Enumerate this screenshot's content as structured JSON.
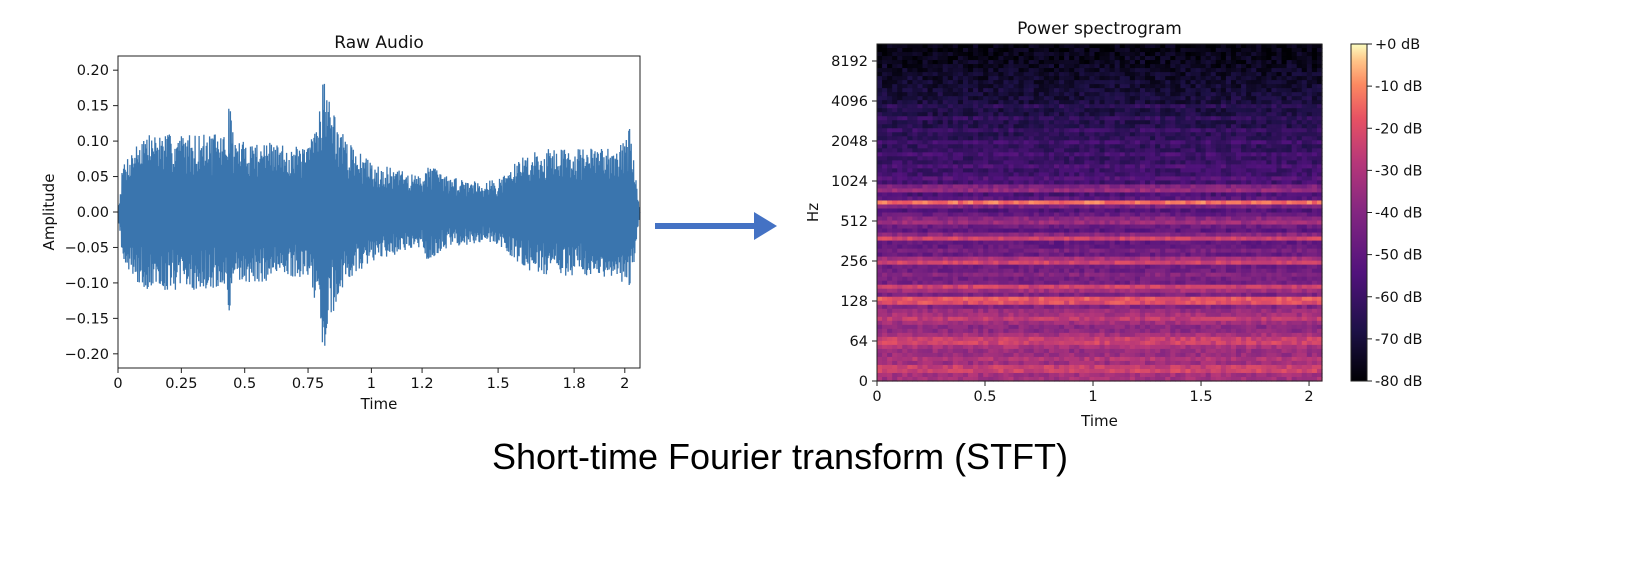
{
  "caption": "Short-time Fourier transform (STFT)",
  "colors": {
    "waveform": "#3a75ae",
    "arrow": "#4472c4"
  },
  "chart_data": [
    {
      "type": "line",
      "title": "Raw Audio",
      "xlabel": "Time",
      "ylabel": "Amplitude",
      "xlim": [
        0,
        2.06
      ],
      "ylim": [
        -0.22,
        0.22
      ],
      "x_ticks": [
        0,
        0.25,
        0.5,
        0.75,
        1,
        1.2,
        1.5,
        1.8,
        2
      ],
      "x_tick_labels": [
        "0",
        "0.25",
        "0.5",
        "0.75",
        "1",
        "1.2",
        "1.5",
        "1.8",
        "2"
      ],
      "y_ticks": [
        0.2,
        0.15,
        0.1,
        0.05,
        0.0,
        -0.05,
        -0.1,
        -0.15,
        -0.2
      ],
      "y_tick_labels": [
        "0.20",
        "0.15",
        "0.10",
        "0.05",
        "0.00",
        "−0.05",
        "−0.10",
        "−0.15",
        "−0.20"
      ],
      "series": [
        {
          "envelope_time": [
            0,
            0.02,
            0.1,
            0.2,
            0.3,
            0.4,
            0.43,
            0.44,
            0.46,
            0.55,
            0.65,
            0.75,
            0.79,
            0.81,
            0.84,
            0.9,
            1.0,
            1.1,
            1.2,
            1.22,
            1.3,
            1.4,
            1.5,
            1.6,
            1.7,
            1.8,
            1.9,
            2.0,
            2.02,
            2.06
          ],
          "envelope_amplitude": [
            0.0,
            0.07,
            0.11,
            0.11,
            0.11,
            0.11,
            0.11,
            0.16,
            0.1,
            0.1,
            0.095,
            0.09,
            0.14,
            0.2,
            0.15,
            0.1,
            0.07,
            0.06,
            0.05,
            0.07,
            0.05,
            0.045,
            0.045,
            0.08,
            0.09,
            0.09,
            0.09,
            0.1,
            0.12,
            0.0
          ]
        }
      ]
    },
    {
      "type": "heatmap",
      "title": "Power spectrogram",
      "xlabel": "Time",
      "ylabel": "Hz",
      "xlim": [
        0,
        2.06
      ],
      "x_ticks": [
        0,
        0.5,
        1,
        1.5,
        2
      ],
      "x_tick_labels": [
        "0",
        "0.5",
        "1",
        "1.5",
        "2"
      ],
      "y_scale": "log2",
      "y_tick_labels": [
        "0",
        "64",
        "128",
        "256",
        "512",
        "1024",
        "2048",
        "4096",
        "8192"
      ],
      "colorbar": {
        "range_db": [
          -80,
          0
        ],
        "tick_labels": [
          "+0 dB",
          "-10 dB",
          "-20 dB",
          "-30 dB",
          "-40 dB",
          "-50 dB",
          "-60 dB",
          "-70 dB",
          "-80 dB"
        ]
      },
      "bands": [
        {
          "freq_hz": 40,
          "db_level": -22
        },
        {
          "freq_hz": 64,
          "db_level": -15
        },
        {
          "freq_hz": 96,
          "db_level": -22
        },
        {
          "freq_hz": 128,
          "db_level": -8
        },
        {
          "freq_hz": 160,
          "db_level": -22
        },
        {
          "freq_hz": 256,
          "db_level": -18
        },
        {
          "freq_hz": 384,
          "db_level": -22
        },
        {
          "freq_hz": 512,
          "db_level": -26
        },
        {
          "freq_hz": 700,
          "db_level": -14
        },
        {
          "freq_hz": 900,
          "db_level": -30
        }
      ]
    }
  ]
}
